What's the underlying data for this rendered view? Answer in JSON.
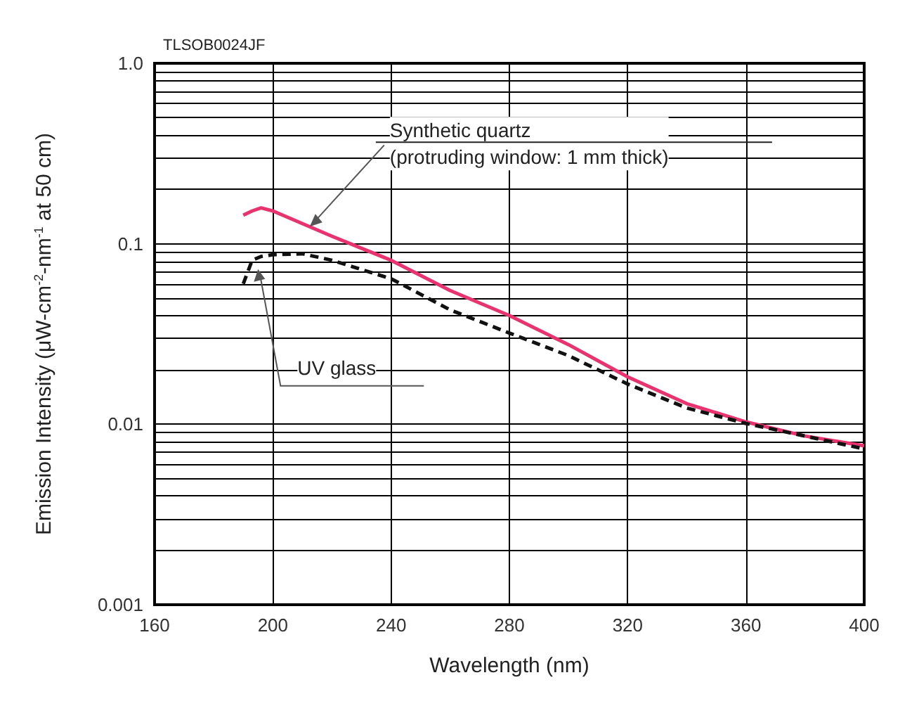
{
  "chart_data": {
    "type": "line",
    "xlabel": "Wavelength (nm)",
    "ylabel": "Emission Intensity (μW-cm$^{-2}$-nm$^{-1}$ at 50 cm)",
    "annotations": [
      "TLSOB0024JF",
      {
        "text": "Synthetic quartz\n(protruding window: 1 mm thick)",
        "x": 212,
        "y": 0.12
      },
      {
        "text": "UV glass",
        "x": 195,
        "y": 0.075
      }
    ],
    "log": "y",
    "grid": true,
    "marker": "none",
    "xlim": [
      160,
      400
    ],
    "xticks": [
      160,
      200,
      240,
      280,
      320,
      360,
      400
    ],
    "ylim": [
      0.001,
      1
    ],
    "yticks": [
      0.001,
      {
        "value": 0.002,
        "label": null
      },
      {
        "value": 0.003,
        "label": null
      },
      {
        "value": 0.004,
        "label": null
      },
      {
        "value": 0.005,
        "label": null
      },
      {
        "value": 0.006,
        "label": null
      },
      {
        "value": 0.007,
        "label": null
      },
      {
        "value": 0.008,
        "label": null
      },
      {
        "value": 0.009,
        "label": null
      },
      0.01,
      {
        "value": 0.02,
        "label": null
      },
      {
        "value": 0.03,
        "label": null
      },
      {
        "value": 0.04,
        "label": null
      },
      {
        "value": 0.05,
        "label": null
      },
      {
        "value": 0.06,
        "label": null
      },
      {
        "value": 0.07,
        "label": null
      },
      {
        "value": 0.08,
        "label": null
      },
      {
        "value": 0.09,
        "label": null
      },
      0.1,
      {
        "value": 0.2,
        "label": null
      },
      {
        "value": 0.3,
        "label": null
      },
      {
        "value": 0.4,
        "label": null
      },
      {
        "value": 0.5,
        "label": null
      },
      {
        "value": 0.6,
        "label": null
      },
      {
        "value": 0.7,
        "label": null
      },
      {
        "value": 0.8,
        "label": null
      },
      {
        "value": 0.9,
        "label": null
      },
      {
        "value": 1,
        "label": "1.0"
      }
    ],
    "series": [
      {
        "color": "#e8336f",
        "line_style": "solid",
        "x": [
          190,
          193,
          196,
          200,
          220,
          240,
          260,
          280,
          300,
          320,
          340,
          360,
          380,
          400
        ],
        "values": [
          0.144,
          0.152,
          0.158,
          0.152,
          0.11,
          0.081,
          0.055,
          0.04,
          0.0276,
          0.0183,
          0.013,
          0.0103,
          0.0086,
          0.0076
        ]
      },
      {
        "color": "#111111",
        "line_style": "dashed",
        "x": [
          190,
          193,
          196,
          200,
          210,
          220,
          240,
          260,
          280,
          300,
          320,
          340,
          360,
          380,
          400
        ],
        "values": [
          0.06,
          0.081,
          0.085,
          0.087,
          0.088,
          0.081,
          0.064,
          0.043,
          0.032,
          0.024,
          0.0167,
          0.0123,
          0.0101,
          0.0086,
          0.0073
        ]
      }
    ]
  }
}
